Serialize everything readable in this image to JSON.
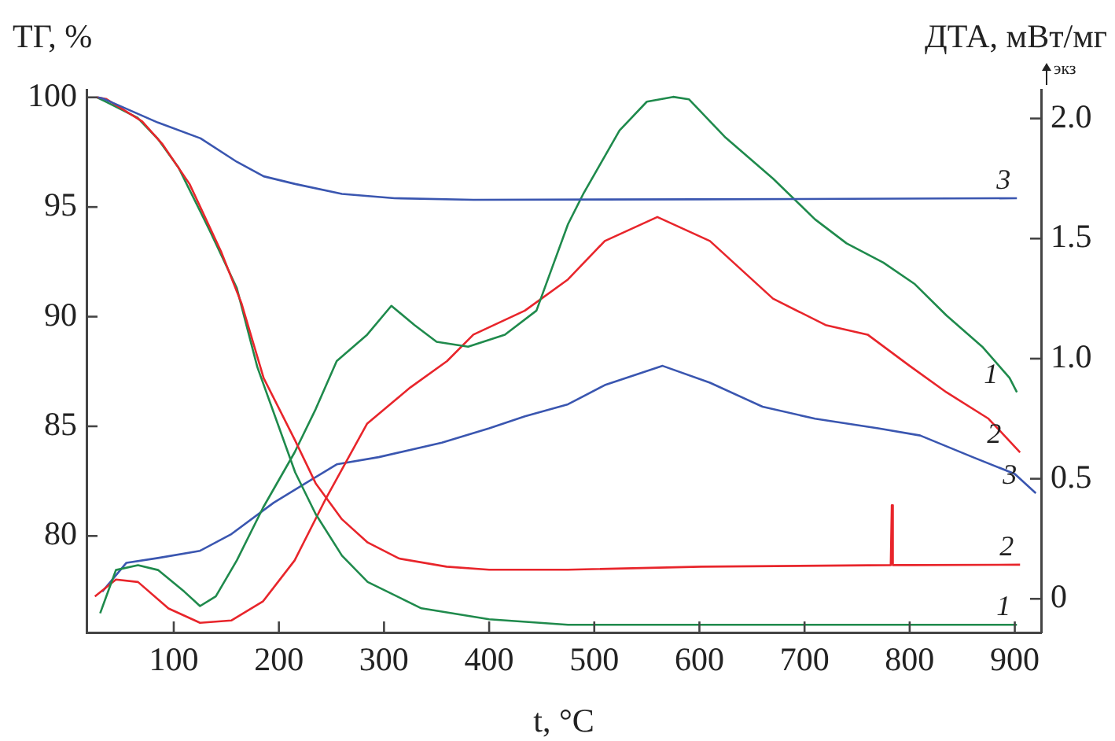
{
  "chart_data": {
    "type": "line",
    "xlabel": "t, °C",
    "ylabel": "ТГ, %",
    "y2label": "ДТА, мВт/мг",
    "annotations": [
      "экз"
    ],
    "xlim": [
      17,
      925
    ],
    "xticks": [
      100,
      200,
      300,
      400,
      500,
      600,
      700,
      800,
      900
    ],
    "ylim": [
      75.6,
      100.35
    ],
    "yticks": [
      80,
      85,
      90,
      95,
      100
    ],
    "y2lim": [
      -0.14,
      2.12
    ],
    "y2ticks": [
      0,
      {
        "value": 0.5,
        "label": "0.5"
      },
      {
        "value": 1,
        "label": "1.0"
      },
      {
        "value": 1.5,
        "label": "1.5"
      },
      {
        "value": 2,
        "label": "2.0"
      }
    ],
    "grid": false,
    "legend": false,
    "marker": "none",
    "line_style": "solid",
    "series": [
      {
        "name": "3",
        "color": "#3a56b0",
        "axis": "y",
        "x": [
          28,
          32.5,
          85,
          125.5,
          160,
          185.5,
          215.5,
          260,
          310,
          385,
          600,
          902
        ],
        "values": [
          100,
          99.95,
          98.85,
          98.13,
          97.06,
          96.4,
          96.05,
          95.6,
          95.4,
          95.33,
          95.35,
          95.4
        ]
      },
      {
        "name": "2",
        "color": "#e8252b",
        "axis": "y",
        "x": [
          27,
          35.5,
          70,
          89.5,
          115,
          145,
          164.5,
          185.5,
          215.5,
          235,
          260,
          284.5,
          314.5,
          359.5,
          400,
          475,
          602,
          782,
          783,
          784,
          802,
          905
        ],
        "values": [
          100,
          99.93,
          98.9,
          97.85,
          96.05,
          92.97,
          90.6,
          87.2,
          84.35,
          82.4,
          80.76,
          79.7,
          78.97,
          78.6,
          78.46,
          78.46,
          78.6,
          78.67,
          81.4,
          78.67,
          78.67,
          78.69
        ]
      },
      {
        "name": "1",
        "color": "#1f8a4c",
        "axis": "y",
        "x": [
          27,
          35.5,
          65.5,
          85,
          104.5,
          134.5,
          160,
          179.5,
          215.5,
          235,
          260,
          284.5,
          335.5,
          400,
          475,
          902
        ],
        "values": [
          100,
          99.8,
          99.07,
          98.1,
          96.8,
          93.9,
          91.3,
          87.7,
          82.9,
          81,
          79.1,
          77.9,
          76.7,
          76.2,
          75.95,
          75.95
        ]
      },
      {
        "name": "1",
        "color": "#1f8a4c",
        "axis": "y2",
        "x": [
          30,
          35,
          45,
          66,
          85,
          110,
          125,
          140,
          160,
          185,
          215,
          235,
          255,
          284,
          307,
          329,
          350,
          380,
          415,
          445,
          460,
          475,
          490,
          524,
          550,
          575,
          590,
          625,
          670,
          710,
          740,
          775,
          805,
          835,
          869,
          895,
          902
        ],
        "values": [
          -0.06,
          0,
          0.12,
          0.14,
          0.12,
          0.03,
          -0.03,
          0.01,
          0.16,
          0.38,
          0.61,
          0.79,
          0.99,
          1.1,
          1.22,
          1.14,
          1.07,
          1.05,
          1.1,
          1.2,
          1.38,
          1.56,
          1.69,
          1.95,
          2.07,
          2.09,
          2.08,
          1.92,
          1.75,
          1.58,
          1.48,
          1.4,
          1.31,
          1.18,
          1.05,
          0.92,
          0.86
        ]
      },
      {
        "name": "2",
        "color": "#e8252b",
        "axis": "y2",
        "x": [
          25,
          45,
          66,
          95,
          125,
          155,
          185,
          215,
          245,
          284,
          325,
          360,
          385,
          434,
          475,
          510,
          560,
          610,
          670,
          720,
          760,
          800,
          835,
          875,
          905
        ],
        "values": [
          0.01,
          0.08,
          0.07,
          -0.04,
          -0.1,
          -0.09,
          -0.01,
          0.16,
          0.42,
          0.73,
          0.88,
          0.99,
          1.1,
          1.2,
          1.33,
          1.49,
          1.59,
          1.49,
          1.25,
          1.14,
          1.1,
          0.97,
          0.86,
          0.75,
          0.61
        ]
      },
      {
        "name": "3",
        "color": "#3a56b0",
        "axis": "y2",
        "x": [
          32,
          55,
          85,
          125,
          155,
          195,
          225,
          255,
          295,
          355,
          400,
          434,
          475,
          510,
          565,
          610,
          660,
          710,
          770,
          810,
          860,
          900,
          920
        ],
        "values": [
          0.03,
          0.15,
          0.17,
          0.2,
          0.27,
          0.4,
          0.48,
          0.56,
          0.59,
          0.65,
          0.71,
          0.76,
          0.81,
          0.89,
          0.97,
          0.9,
          0.8,
          0.75,
          0.71,
          0.68,
          0.59,
          0.52,
          0.44
        ]
      }
    ]
  }
}
